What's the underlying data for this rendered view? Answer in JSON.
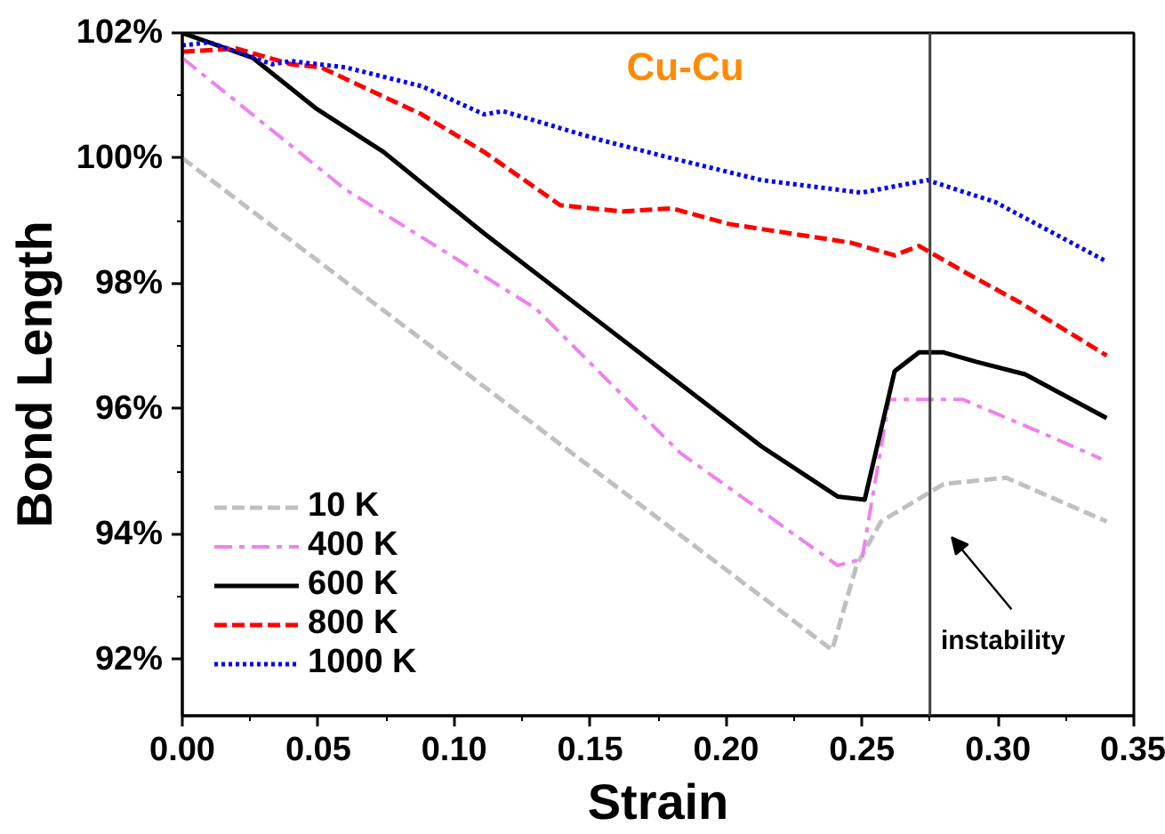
{
  "chart_data": {
    "type": "line",
    "xlabel": "Strain",
    "ylabel": "Bond Length",
    "annotations": [
      "Cu-Cu"
    ],
    "xlim": [
      0,
      0.35
    ],
    "ylim": [
      91.1,
      102
    ],
    "xticks": [
      {
        "value": 0,
        "label": "0.00"
      },
      {
        "value": 0.05,
        "label": "0.05"
      },
      {
        "value": 0.1,
        "label": "0.10"
      },
      {
        "value": 0.15,
        "label": "0.15"
      },
      {
        "value": 0.2,
        "label": "0.20"
      },
      {
        "value": 0.25,
        "label": "0.25"
      },
      {
        "value": 0.3,
        "label": "0.30"
      },
      {
        "value": 0.35,
        "label": "0.35"
      }
    ],
    "yticks": [
      {
        "value": 92,
        "label": "92%"
      },
      {
        "value": 94,
        "label": "94%"
      },
      {
        "value": 96,
        "label": "96%"
      },
      {
        "value": 98,
        "label": "98%"
      },
      {
        "value": 100,
        "label": "100%"
      },
      {
        "value": 102,
        "label": "102%"
      }
    ],
    "grid": false,
    "legend": "bottom left",
    "ref_lines": [
      {
        "axis": "x",
        "value": 0.275,
        "label": "instability",
        "color": "#404040"
      }
    ],
    "series": [
      {
        "name": "10 K",
        "color": "#c0c0c0",
        "line_style": "dashed",
        "x": [
          0,
          0.239,
          0.248,
          0.257,
          0.28,
          0.303,
          0.34
        ],
        "values": [
          100,
          92.15,
          93.5,
          94.2,
          94.8,
          94.9,
          94.2
        ]
      },
      {
        "name": "400 K",
        "color": "#ee82ee",
        "line_style": "dashdot",
        "x": [
          0,
          0.06,
          0.13,
          0.183,
          0.241,
          0.25,
          0.26,
          0.287,
          0.317,
          0.338
        ],
        "values": [
          101.6,
          99.5,
          97.6,
          95.3,
          93.5,
          93.6,
          96.15,
          96.15,
          95.6,
          95.2
        ]
      },
      {
        "name": "600 K",
        "color": "#000000",
        "line_style": "solid",
        "x": [
          0,
          0.026,
          0.049,
          0.074,
          0.111,
          0.153,
          0.18,
          0.213,
          0.241,
          0.251,
          0.262,
          0.271,
          0.28,
          0.292,
          0.31,
          0.34
        ],
        "values": [
          102,
          101.6,
          100.8,
          100.1,
          98.8,
          97.4,
          96.5,
          95.4,
          94.6,
          94.55,
          96.6,
          96.9,
          96.9,
          96.75,
          96.55,
          95.85
        ]
      },
      {
        "name": "800 K",
        "color": "#ff0000",
        "line_style": "dashed",
        "x": [
          0,
          0.02,
          0.04,
          0.051,
          0.088,
          0.111,
          0.139,
          0.162,
          0.18,
          0.201,
          0.246,
          0.262,
          0.271,
          0.287,
          0.308,
          0.34
        ],
        "values": [
          101.7,
          101.75,
          101.5,
          101.45,
          100.7,
          100.1,
          99.25,
          99.15,
          99.2,
          98.95,
          98.65,
          98.45,
          98.6,
          98.2,
          97.7,
          96.85
        ]
      },
      {
        "name": "1000 K",
        "color": "#0000ff",
        "line_style": "dotted",
        "x": [
          0,
          0.01,
          0.033,
          0.04,
          0.06,
          0.088,
          0.111,
          0.118,
          0.153,
          0.18,
          0.213,
          0.25,
          0.274,
          0.299,
          0.34
        ],
        "values": [
          101.8,
          101.85,
          101.5,
          101.55,
          101.45,
          101.15,
          100.7,
          100.75,
          100.3,
          100.0,
          99.65,
          99.45,
          99.65,
          99.3,
          98.35
        ]
      }
    ]
  }
}
